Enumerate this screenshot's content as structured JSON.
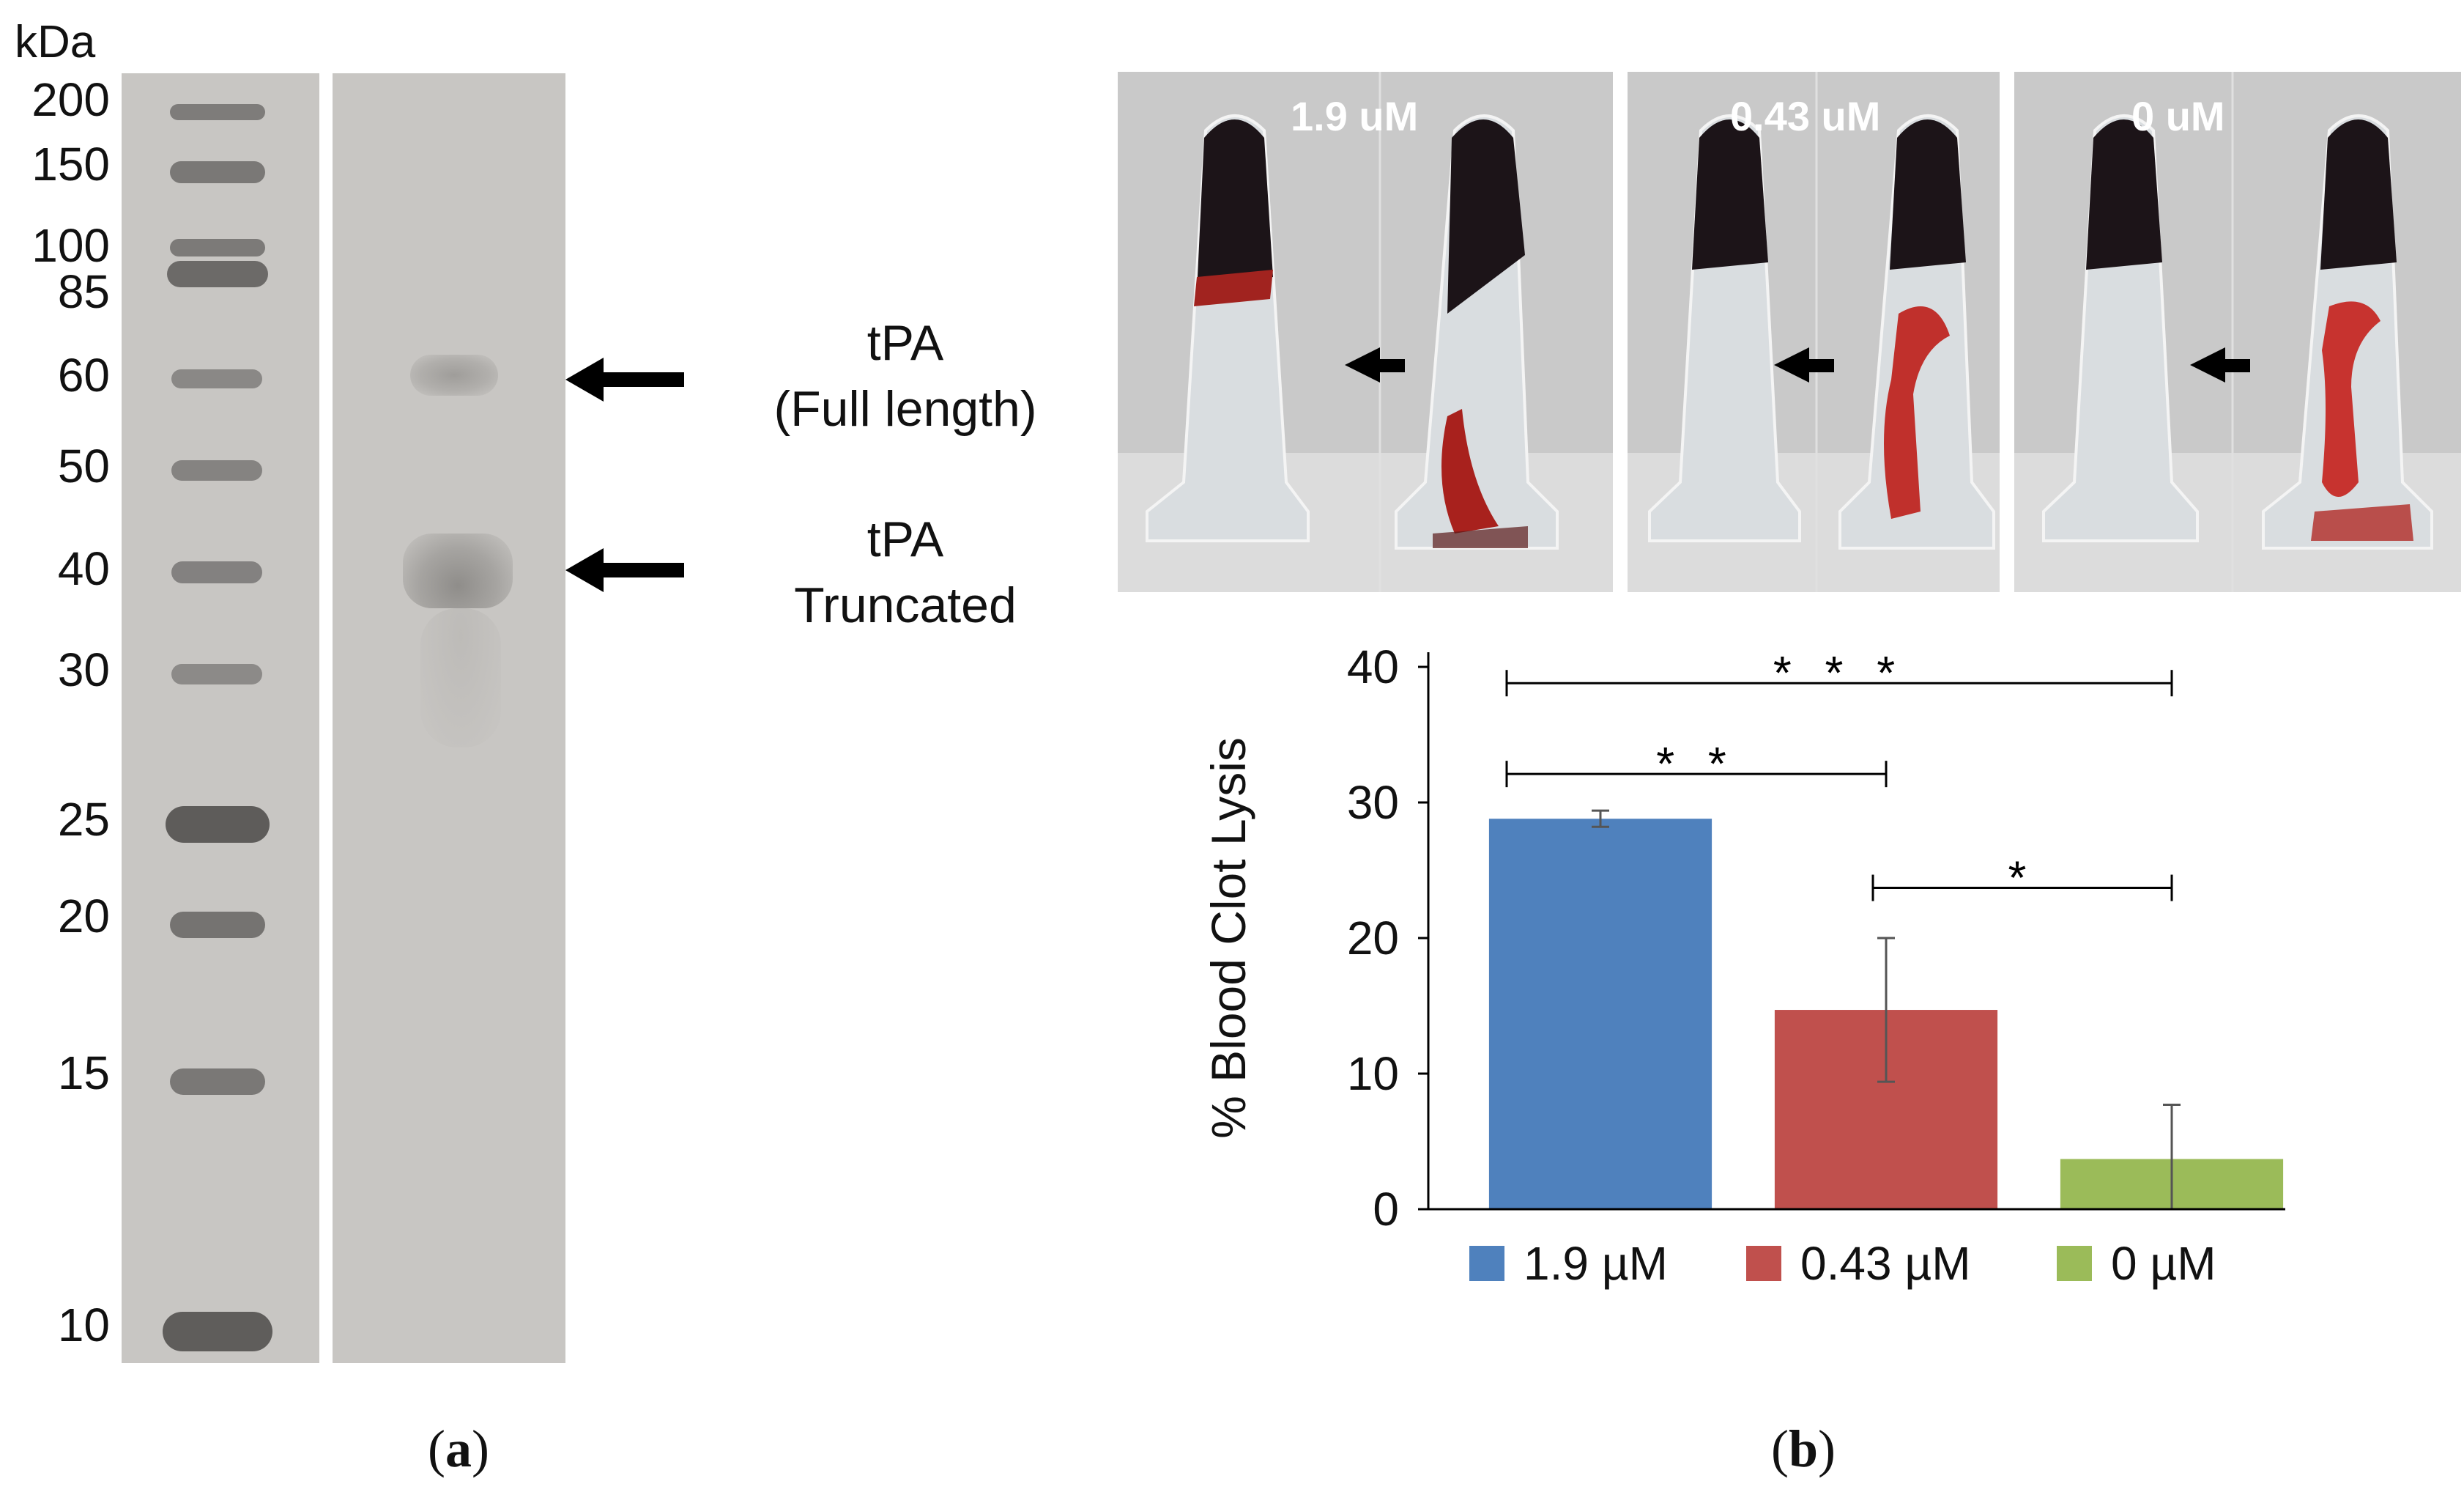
{
  "panel_a": {
    "unit_label": "kDa",
    "markers": [
      "200",
      "150",
      "100",
      "85",
      "60",
      "50",
      "40",
      "30",
      "25",
      "20",
      "15",
      "10"
    ],
    "annotations": [
      {
        "line1": "tPA",
        "line2": "(Full length)"
      },
      {
        "line1": "tPA",
        "line2": "Truncated"
      }
    ],
    "panel_label_letter": "a"
  },
  "panel_b": {
    "photo_labels": [
      "1.9 uM",
      "0.43 uM",
      "0 uM"
    ],
    "panel_label_letter": "b"
  },
  "chart_data": {
    "type": "bar",
    "title": "",
    "xlabel": "",
    "ylabel": "% Blood Clot Lysis",
    "ylim": [
      0,
      40
    ],
    "yticks": [
      0,
      10,
      20,
      30,
      40
    ],
    "categories": [
      "1.9 µM",
      "0.43 µM",
      "0 µM"
    ],
    "values": [
      28.8,
      14.7,
      3.7
    ],
    "errors": [
      0.6,
      5.3,
      4.0
    ],
    "colors": [
      "#4f81bd",
      "#c0504d",
      "#9bbb59"
    ],
    "legend": [
      "1.9 µM",
      "0.43 µM",
      "0 µM"
    ],
    "legend_position": "bottom",
    "significance": [
      {
        "from": 0,
        "to": 2,
        "label": "* * *",
        "y": 38.8
      },
      {
        "from": 0,
        "to": 1,
        "label": "* *",
        "y": 32.1
      },
      {
        "from": 1,
        "to": 2,
        "label": "*",
        "y": 23.7
      }
    ]
  }
}
